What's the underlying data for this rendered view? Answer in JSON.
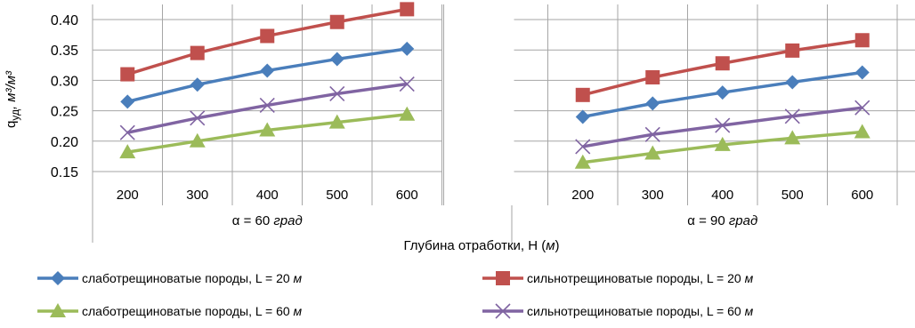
{
  "chart_data": {
    "type": "line",
    "ylabel": "q",
    "ylabel_sub": "уд",
    "ylabel_unit": ", м³/м³",
    "xlabel": "Глубина отработки, Н (м)",
    "ylim": [
      0.15,
      0.4
    ],
    "yticks": [
      "0.40",
      "0.35",
      "0.30",
      "0.25",
      "0.20",
      "0.15"
    ],
    "ytick_values": [
      0.4,
      0.35,
      0.3,
      0.25,
      0.2,
      0.15
    ],
    "grid": true,
    "categories": [
      "200",
      "300",
      "400",
      "500",
      "600"
    ],
    "groups": [
      {
        "label": "α = 60 град",
        "series": [
          {
            "key": "s1",
            "values": [
              0.265,
              0.293,
              0.316,
              0.335,
              0.352
            ]
          },
          {
            "key": "s2",
            "values": [
              0.31,
              0.345,
              0.373,
              0.396,
              0.417
            ]
          },
          {
            "key": "s3",
            "values": [
              0.182,
              0.2,
              0.218,
              0.231,
              0.244
            ]
          },
          {
            "key": "s4",
            "values": [
              0.214,
              0.238,
              0.259,
              0.278,
              0.294
            ]
          }
        ]
      },
      {
        "label": "α = 90 град",
        "series": [
          {
            "key": "s1",
            "values": [
              0.24,
              0.262,
              0.28,
              0.297,
              0.313
            ]
          },
          {
            "key": "s2",
            "values": [
              0.276,
              0.305,
              0.328,
              0.349,
              0.366
            ]
          },
          {
            "key": "s3",
            "values": [
              0.165,
              0.18,
              0.194,
              0.205,
              0.215
            ]
          },
          {
            "key": "s4",
            "values": [
              0.191,
              0.211,
              0.226,
              0.241,
              0.255
            ]
          }
        ]
      }
    ],
    "series_styles": {
      "s1": {
        "color": "#4a7ebb",
        "marker": "diamond"
      },
      "s2": {
        "color": "#c0504d",
        "marker": "square"
      },
      "s3": {
        "color": "#9bbb59",
        "marker": "triangle"
      },
      "s4": {
        "color": "#8064a2",
        "marker": "x"
      }
    },
    "legend_position": "bottom",
    "legend": [
      {
        "key": "s1",
        "text": "слаботрещиноватые породы,  L = 20 ",
        "unit": "м"
      },
      {
        "key": "s2",
        "text": "сильнотрещиноватые породы,  L = 20 ",
        "unit": "м"
      },
      {
        "key": "s3",
        "text": "слаботрещиноватые породы,  L = 60 ",
        "unit": "м"
      },
      {
        "key": "s4",
        "text": "сильнотрещиноватые породы,  L = 60 ",
        "unit": "м"
      }
    ]
  }
}
